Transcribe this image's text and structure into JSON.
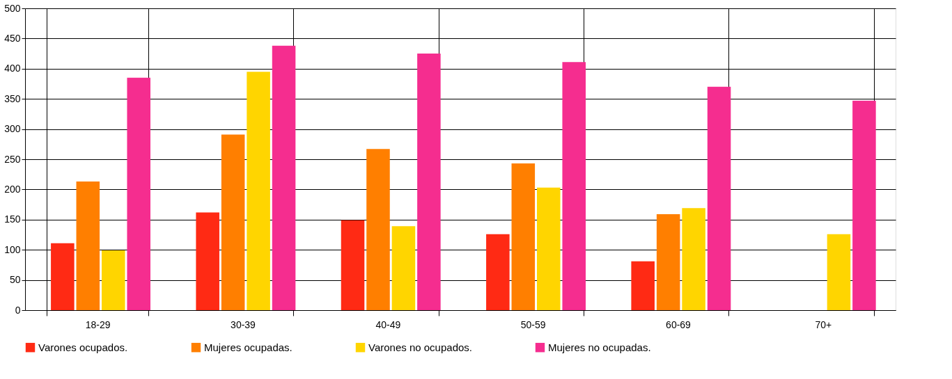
{
  "chart_data": {
    "type": "bar",
    "categories": [
      "18-29",
      "30-39",
      "40-49",
      "50-59",
      "60-69",
      "70+"
    ],
    "series": [
      {
        "name": "Varones ocupados.",
        "color": "#ff2a14",
        "values": [
          111,
          162,
          149,
          126,
          81,
          null
        ]
      },
      {
        "name": "Mujeres ocupadas.",
        "color": "#ff7f00",
        "values": [
          213,
          291,
          267,
          243,
          159,
          null
        ]
      },
      {
        "name": "Varones no ocupados.",
        "color": "#ffd500",
        "values": [
          99,
          395,
          139,
          203,
          169,
          126
        ]
      },
      {
        "name": "Mujeres no ocupadas.",
        "color": "#f52d8f",
        "values": [
          385,
          438,
          425,
          411,
          370,
          347
        ]
      }
    ],
    "ylim": [
      0,
      500
    ],
    "yticks": [
      0,
      50,
      100,
      150,
      200,
      250,
      300,
      350,
      400,
      450,
      500
    ],
    "grid": true,
    "legend": "bottom"
  }
}
